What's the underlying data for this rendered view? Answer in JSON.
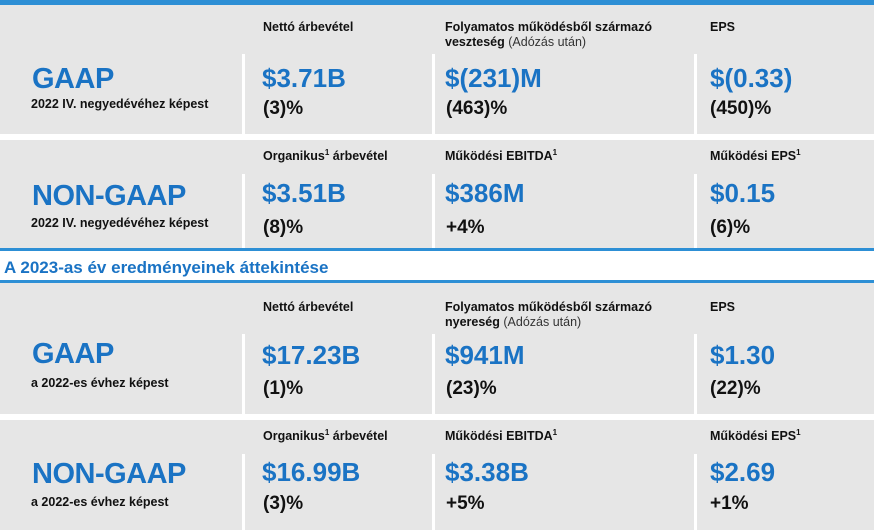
{
  "q4": {
    "gaap": {
      "title": "GAAP",
      "sub": "2022 IV. negyedévéhez képest",
      "cols": [
        {
          "header": "Nettó árbevétel",
          "value": "$3.71B",
          "change": "(3)%"
        },
        {
          "header": "Folyamatos működésből származó",
          "header2": "veszteség",
          "header_note": "(Adózás után)",
          "value": "$(231)M",
          "change": "(463)%"
        },
        {
          "header": "EPS",
          "value": "$(0.33)",
          "change": "(450)%"
        }
      ]
    },
    "nongaap": {
      "title": "NON-GAAP",
      "sub": "2022 IV. negyedévéhez képest",
      "cols": [
        {
          "header": "Organikus",
          "sup": "1",
          "header_after": " árbevétel",
          "value": "$3.51B",
          "change": "(8)%"
        },
        {
          "header": "Működési EBITDA",
          "sup": "1",
          "value": "$386M",
          "change": "+4%"
        },
        {
          "header": "Működési EPS",
          "sup": "1",
          "value": "$0.15",
          "change": "(6)%"
        }
      ]
    }
  },
  "section_title": "A 2023-as év eredményeinek áttekintése",
  "fy": {
    "gaap": {
      "title": "GAAP",
      "sub": "a 2022-es évhez képest",
      "cols": [
        {
          "header": "Nettó árbevétel",
          "value": "$17.23B",
          "change": "(1)%"
        },
        {
          "header": "Folyamatos működésből származó",
          "header2": "nyereség",
          "header_note": "(Adózás után)",
          "value": "$941M",
          "change": "(23)%"
        },
        {
          "header": "EPS",
          "value": "$1.30",
          "change": "(22)%"
        }
      ]
    },
    "nongaap": {
      "title": "NON-GAAP",
      "sub": "a 2022-es évhez képest",
      "cols": [
        {
          "header": "Organikus",
          "sup": "1",
          "header_after": " árbevétel",
          "value": "$16.99B",
          "change": "(3)%"
        },
        {
          "header": "Működési EBITDA",
          "sup": "1",
          "value": "$3.38B",
          "change": "+5%"
        },
        {
          "header": "Működési EPS",
          "sup": "1",
          "value": "$2.69",
          "change": "+1%"
        }
      ]
    }
  },
  "colors": {
    "accent": "#1a73c4",
    "bar": "#2d8fd5",
    "panel": "#e6e6e6"
  }
}
